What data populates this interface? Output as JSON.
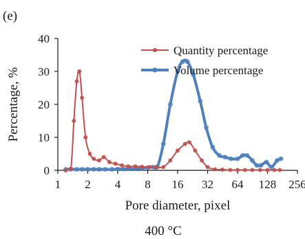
{
  "panel_label": "(e)",
  "caption": "400 °C",
  "colors": {
    "quantity": "#c0504d",
    "volume": "#4f81bd",
    "axis": "#1a1a1a"
  },
  "chart_data": {
    "type": "line",
    "xlabel": "Pore diameter, pixel",
    "ylabel": "Percentage, %",
    "x_scale": "log2",
    "xlim": [
      1,
      256
    ],
    "ylim": [
      0,
      40
    ],
    "x_ticks": [
      1,
      2,
      4,
      8,
      16,
      32,
      64,
      128,
      256
    ],
    "x_tick_labels": [
      "1",
      "2",
      "4",
      "8",
      "16",
      "32",
      "64",
      "128",
      "256"
    ],
    "y_ticks": [
      0,
      10,
      20,
      30,
      40
    ],
    "y_tick_labels": [
      "0",
      "10",
      "20",
      "30",
      "40"
    ],
    "legend_position": "top-right",
    "series": [
      {
        "name": "Quantity percentage",
        "color": "#c0504d",
        "x": [
          1.2,
          1.35,
          1.45,
          1.55,
          1.65,
          1.75,
          1.9,
          2.1,
          2.3,
          2.6,
          2.9,
          3.3,
          3.8,
          4.4,
          5.1,
          6.0,
          7.0,
          8.3,
          9.7,
          11.5,
          13.5,
          16,
          19,
          21,
          24,
          28,
          32,
          38,
          45,
          54,
          64,
          76,
          90,
          108,
          128,
          150,
          170
        ],
        "y": [
          0,
          0.5,
          15,
          27,
          30,
          22,
          10,
          5,
          3.5,
          3,
          4,
          2.5,
          2,
          1.5,
          1.2,
          1.2,
          1.1,
          1.0,
          1.0,
          1.0,
          3,
          6,
          8,
          8.5,
          6,
          3,
          1,
          0.3,
          0.2,
          0.1,
          0.1,
          0.1,
          0.1,
          0.1,
          0.1,
          0.1,
          0.1
        ]
      },
      {
        "name": "Volume percentage",
        "color": "#4f81bd",
        "x": [
          1.2,
          1.35,
          1.55,
          1.75,
          2.0,
          2.3,
          2.6,
          3.0,
          3.5,
          4.0,
          4.6,
          5.3,
          6.0,
          7.0,
          8.0,
          9.0,
          10,
          11.5,
          13.5,
          16,
          18,
          20,
          23,
          27,
          31,
          36,
          42,
          48,
          55,
          64,
          72,
          80,
          90,
          100,
          110,
          125,
          140,
          160,
          175
        ],
        "y": [
          0.3,
          0.3,
          0.3,
          0.3,
          0.3,
          0.3,
          0.3,
          0.3,
          0.3,
          0.4,
          0.4,
          0.5,
          0.5,
          0.6,
          0.8,
          1.0,
          1.0,
          8,
          20,
          30,
          33,
          33,
          29,
          21,
          13,
          7,
          4.5,
          4,
          3.5,
          3.5,
          4.5,
          4.5,
          3,
          1.5,
          1.5,
          2.5,
          1,
          3,
          3.5
        ]
      }
    ]
  }
}
